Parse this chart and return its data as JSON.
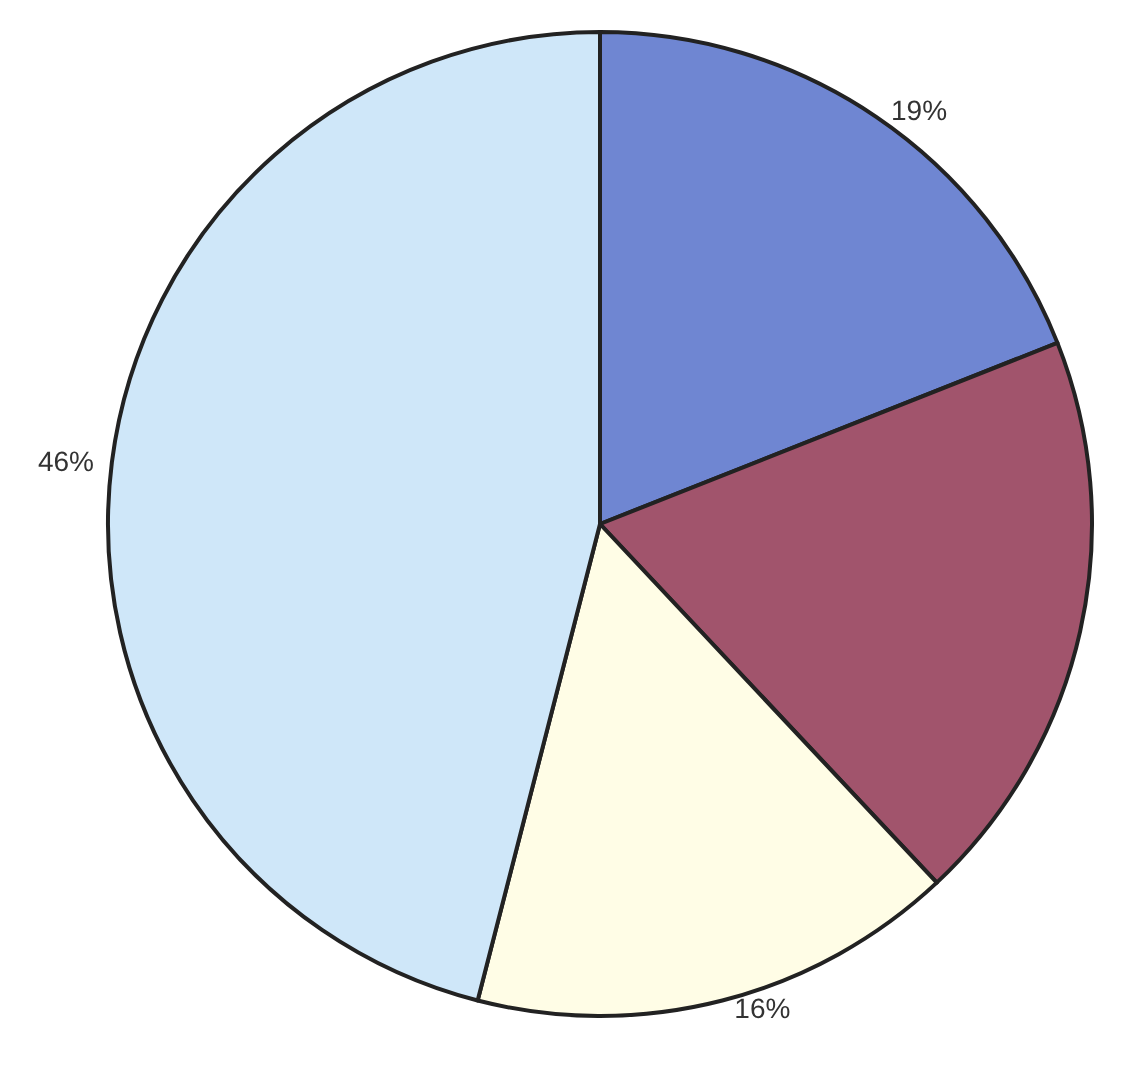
{
  "chart_data": {
    "type": "pie",
    "categories": [
      null,
      null,
      null,
      null
    ],
    "values": [
      19,
      19,
      16,
      46
    ],
    "colors": [
      "#6f86d2",
      "#a1546c",
      "#fffde6",
      "#cfe7f9"
    ],
    "value_labels": [
      "19%",
      null,
      "16%",
      "46%"
    ]
  }
}
